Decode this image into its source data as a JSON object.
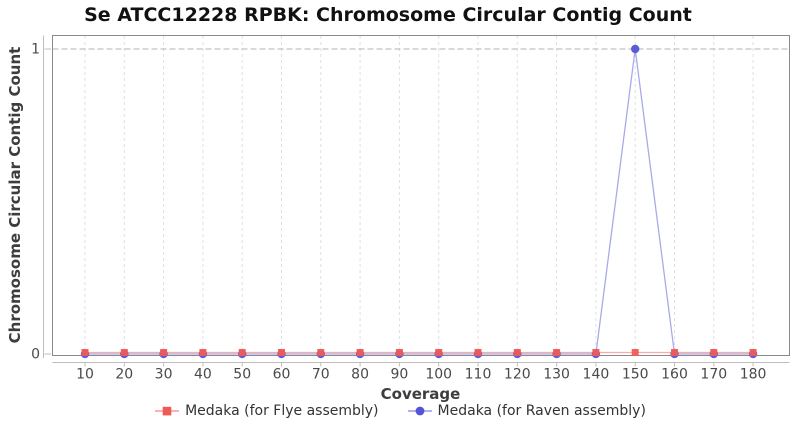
{
  "chart_data": {
    "type": "line",
    "title": "Se ATCC12228 RPBK: Chromosome Circular Contig Count",
    "xlabel": "Coverage",
    "ylabel": "Chromosome Circular Contig Count",
    "x": [
      10,
      20,
      30,
      40,
      50,
      60,
      70,
      80,
      90,
      100,
      110,
      120,
      130,
      140,
      150,
      160,
      170,
      180
    ],
    "series": [
      {
        "name": "Medaka (for Flye assembly)",
        "color": "#f05a56",
        "marker": "square",
        "values": [
          0,
          0,
          0,
          0,
          0,
          0,
          0,
          0,
          0,
          0,
          0,
          0,
          0,
          0,
          0,
          0,
          0,
          0
        ]
      },
      {
        "name": "Medaka (for Raven assembly)",
        "color": "#5355d6",
        "marker": "circle",
        "values": [
          0,
          0,
          0,
          0,
          0,
          0,
          0,
          0,
          0,
          0,
          0,
          0,
          0,
          0,
          1,
          0,
          0,
          0
        ]
      }
    ],
    "xticks": [
      10,
      20,
      30,
      40,
      50,
      60,
      70,
      80,
      90,
      100,
      110,
      120,
      130,
      140,
      150,
      160,
      170,
      180
    ],
    "yticks": [
      0,
      1
    ],
    "ylim": [
      0,
      1
    ],
    "xlim": [
      2,
      189
    ],
    "grid": {
      "vertical": "dashed-light",
      "horizontal": "dashed-at-1"
    },
    "legend_position": "bottom"
  }
}
